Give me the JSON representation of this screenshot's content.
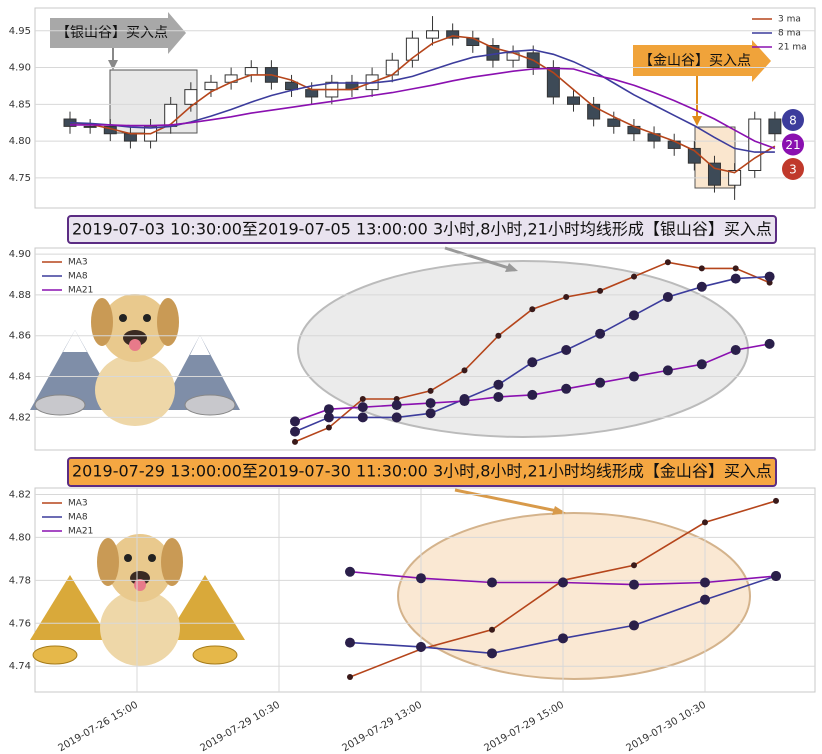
{
  "chart_data": [
    {
      "type": "candlestick",
      "legend": [
        "3 ma",
        "8 ma",
        "21 ma"
      ],
      "annotations": [
        "【银山谷】买入点",
        "【金山谷】买入点"
      ],
      "badges": [
        8,
        21,
        3
      ],
      "ylim": [
        4.709,
        4.981
      ],
      "yticks": [
        {
          "value": 4.75,
          "label": "4.75"
        },
        {
          "value": 4.8,
          "label": "4.80"
        },
        {
          "value": 4.85,
          "label": "4.85"
        },
        {
          "value": 4.9,
          "label": "4.90"
        },
        4.95
      ],
      "grid": true,
      "open": [
        4.83,
        4.82,
        4.82,
        4.81,
        4.8,
        4.82,
        4.85,
        4.87,
        4.88,
        4.89,
        4.9,
        4.88,
        4.87,
        4.86,
        4.88,
        4.87,
        4.89,
        4.91,
        4.94,
        4.95,
        4.94,
        4.93,
        4.91,
        4.92,
        4.9,
        4.86,
        4.85,
        4.83,
        4.82,
        4.81,
        4.8,
        4.79,
        4.77,
        4.74,
        4.76,
        4.83
      ],
      "high": [
        4.84,
        4.83,
        4.83,
        4.82,
        4.83,
        4.86,
        4.88,
        4.89,
        4.9,
        4.91,
        4.91,
        4.89,
        4.88,
        4.89,
        4.89,
        4.9,
        4.92,
        4.95,
        4.97,
        4.96,
        4.95,
        4.94,
        4.93,
        4.93,
        4.91,
        4.87,
        4.86,
        4.84,
        4.83,
        4.82,
        4.81,
        4.8,
        4.78,
        4.77,
        4.84,
        4.84
      ],
      "low": [
        4.81,
        4.81,
        4.8,
        4.79,
        4.79,
        4.81,
        4.84,
        4.86,
        4.87,
        4.88,
        4.87,
        4.86,
        4.85,
        4.85,
        4.86,
        4.86,
        4.88,
        4.9,
        4.93,
        4.93,
        4.92,
        4.9,
        4.9,
        4.89,
        4.85,
        4.84,
        4.82,
        4.81,
        4.8,
        4.79,
        4.78,
        4.76,
        4.73,
        4.72,
        4.75,
        4.8
      ],
      "close": [
        4.82,
        4.82,
        4.81,
        4.8,
        4.82,
        4.85,
        4.87,
        4.88,
        4.89,
        4.9,
        4.88,
        4.87,
        4.86,
        4.88,
        4.87,
        4.89,
        4.91,
        4.94,
        4.95,
        4.94,
        4.93,
        4.91,
        4.92,
        4.9,
        4.86,
        4.85,
        4.83,
        4.82,
        4.81,
        4.8,
        4.79,
        4.77,
        4.74,
        4.76,
        4.83,
        4.81
      ],
      "series": [
        {
          "name": "3 ma",
          "color": "#b5451b",
          "values": [
            4.825,
            4.823,
            4.817,
            4.81,
            4.81,
            4.823,
            4.847,
            4.867,
            4.88,
            4.89,
            4.89,
            4.883,
            4.87,
            4.87,
            4.87,
            4.88,
            4.89,
            4.913,
            4.933,
            4.943,
            4.94,
            4.927,
            4.92,
            4.91,
            4.893,
            4.87,
            4.847,
            4.833,
            4.82,
            4.81,
            4.8,
            4.787,
            4.763,
            4.757,
            4.777,
            4.793
          ]
        },
        {
          "name": "8 ma",
          "color": "#3c3c9c",
          "values": [
            4.825,
            4.824,
            4.822,
            4.819,
            4.818,
            4.82,
            4.826,
            4.834,
            4.843,
            4.853,
            4.862,
            4.869,
            4.875,
            4.879,
            4.879,
            4.879,
            4.882,
            4.888,
            4.897,
            4.906,
            4.914,
            4.918,
            4.922,
            4.924,
            4.918,
            4.908,
            4.895,
            4.879,
            4.863,
            4.849,
            4.835,
            4.821,
            4.805,
            4.79,
            4.785,
            4.785
          ]
        },
        {
          "name": "21 ma",
          "color": "#8a10b0",
          "values": [
            4.822,
            4.822,
            4.822,
            4.821,
            4.821,
            4.822,
            4.825,
            4.829,
            4.833,
            4.838,
            4.842,
            4.846,
            4.85,
            4.854,
            4.858,
            4.862,
            4.866,
            4.871,
            4.876,
            4.882,
            4.887,
            4.891,
            4.895,
            4.898,
            4.899,
            4.898,
            4.89,
            4.884,
            4.876,
            4.866,
            4.855,
            4.843,
            4.83,
            4.815,
            4.8,
            4.79
          ]
        }
      ]
    },
    {
      "type": "line",
      "title": "2019-07-03 10:30:00至2019-07-05 13:00:00 3小时,8小时,21小时均线形成【银山谷】买入点",
      "ylim": [
        4.804,
        4.903
      ],
      "yticks": [
        4.82,
        4.84,
        4.86,
        4.88,
        {
          "value": 4.9,
          "label": "4.90"
        }
      ],
      "grid": true,
      "series": [
        {
          "name": "MA3",
          "color": "#b5451b",
          "values": [
            4.808,
            4.815,
            4.829,
            4.829,
            4.833,
            4.843,
            4.86,
            4.873,
            4.879,
            4.882,
            4.889,
            4.896,
            4.893,
            4.893,
            4.886
          ]
        },
        {
          "name": "MA8",
          "color": "#3c3c9c",
          "values": [
            4.813,
            4.82,
            4.82,
            4.82,
            4.822,
            4.829,
            4.836,
            4.847,
            4.853,
            4.861,
            4.87,
            4.879,
            4.884,
            4.888,
            4.889
          ]
        },
        {
          "name": "MA21",
          "color": "#8a10b0",
          "values": [
            4.818,
            4.824,
            4.825,
            4.826,
            4.827,
            4.828,
            4.83,
            4.831,
            4.834,
            4.837,
            4.84,
            4.843,
            4.846,
            4.853,
            4.856
          ]
        }
      ]
    },
    {
      "type": "line",
      "title": "2019-07-29 13:00:00至2019-07-30 11:30:00 3小时,8小时,21小时均线形成【金山谷】买入点",
      "categories": [
        "2019-07-26 15:00",
        null,
        "2019-07-29 10:30",
        null,
        "2019-07-29 13:00",
        null,
        "2019-07-29 15:00",
        null,
        "2019-07-30 10:30",
        null
      ],
      "ylim": [
        4.728,
        4.823
      ],
      "yticks": [
        4.74,
        4.76,
        4.78,
        {
          "value": 4.8,
          "label": "4.80"
        },
        4.82
      ],
      "grid": true,
      "series": [
        {
          "name": "MA3",
          "color": "#b5451b",
          "values": [
            null,
            null,
            null,
            4.735,
            4.748,
            4.757,
            4.78,
            4.787,
            4.807,
            4.817
          ]
        },
        {
          "name": "MA8",
          "color": "#3c3c9c",
          "values": [
            null,
            null,
            null,
            4.751,
            4.749,
            4.746,
            4.753,
            4.759,
            4.771,
            4.782
          ]
        },
        {
          "name": "MA21",
          "color": "#8a10b0",
          "values": [
            null,
            null,
            null,
            4.784,
            4.781,
            4.779,
            4.779,
            4.778,
            4.779,
            4.782
          ]
        }
      ]
    }
  ]
}
